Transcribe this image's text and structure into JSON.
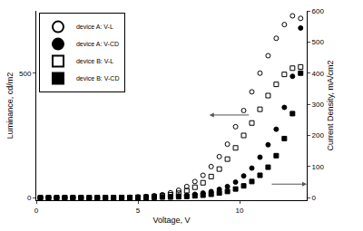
{
  "chart_data": {
    "type": "scatter",
    "x_label": "Voltage, V",
    "y_label": "Luminance, cd/m2",
    "y2_label": "Current Density, mA/cm2",
    "x": [
      0.2,
      0.6,
      1.0,
      1.4,
      1.8,
      2.2,
      2.6,
      3.0,
      3.4,
      3.8,
      4.2,
      4.6,
      5.0,
      5.4,
      5.8,
      6.2,
      6.6,
      7.0,
      7.4,
      7.8,
      8.2,
      8.6,
      9.0,
      9.4,
      9.8,
      10.2,
      10.6,
      11.0,
      11.4,
      11.8,
      12.2,
      12.6,
      13.0
    ],
    "series": [
      {
        "name": "device A: V-L",
        "color": "#000000",
        "marker": "circle-open",
        "values": [
          0,
          0,
          0,
          0,
          0,
          0,
          0,
          0,
          0,
          0,
          1,
          2,
          3,
          5,
          8,
          12,
          20,
          30,
          45,
          65,
          90,
          125,
          165,
          215,
          285,
          350,
          425,
          500,
          570,
          640,
          695,
          730,
          720
        ]
      },
      {
        "name": "device A: V-CD",
        "color": "#000000",
        "marker": "circle",
        "axis": "y2",
        "values": [
          0,
          0,
          0,
          0,
          0,
          0,
          0,
          0,
          0,
          0,
          0,
          0,
          0,
          1,
          2,
          3,
          4,
          6,
          8,
          11,
          15,
          20,
          27,
          36,
          50,
          70,
          95,
          130,
          170,
          220,
          290,
          390,
          545
        ]
      },
      {
        "name": "device B: V-L",
        "color": "#000000",
        "marker": "square-open",
        "values": [
          0,
          0,
          0,
          0,
          0,
          0,
          0,
          0,
          0,
          0,
          1,
          1,
          2,
          3,
          5,
          8,
          12,
          18,
          28,
          42,
          60,
          85,
          115,
          155,
          200,
          250,
          300,
          355,
          410,
          455,
          495,
          520,
          525
        ]
      },
      {
        "name": "device B: V-CD",
        "color": "#000000",
        "marker": "square",
        "axis": "y2",
        "values": [
          0,
          0,
          0,
          0,
          0,
          0,
          0,
          0,
          0,
          0,
          0,
          0,
          0,
          0,
          1,
          2,
          2,
          3,
          4,
          6,
          8,
          11,
          15,
          20,
          28,
          38,
          52,
          72,
          98,
          135,
          190,
          270,
          400
        ]
      }
    ],
    "xlim": [
      0,
      13.3
    ],
    "xticks": [
      0,
      5,
      10
    ],
    "ylim": [
      -10,
      750
    ],
    "yticks": [
      0,
      500
    ],
    "y2lim": [
      -8,
      600
    ],
    "y2ticks": [
      0,
      100,
      200,
      300,
      400,
      500,
      600
    ],
    "grid": false,
    "legend": "upper left"
  }
}
